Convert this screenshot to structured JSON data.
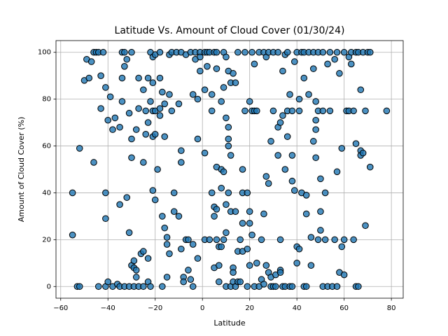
{
  "chart_data": {
    "type": "scatter",
    "title": "Latitude Vs. Amount of Cloud Cover (01/30/24)",
    "x_label": "Latitude",
    "y_label": "Amount of Cloud Cover (%)",
    "color": "#1f77b4",
    "edgecolor": "#000000",
    "grid": true,
    "xlim": [
      -62,
      85
    ],
    "ylim": [
      -5,
      105
    ],
    "xticks": [
      {
        "value": -60,
        "label": "−60"
      },
      {
        "value": -40,
        "label": "−40"
      },
      {
        "value": -20,
        "label": "−20"
      },
      0,
      20,
      40,
      60,
      80
    ],
    "yticks": [
      0,
      20,
      40,
      60,
      80,
      100
    ],
    "x": [
      -55,
      -55,
      -53,
      -52,
      -52,
      -50,
      -49,
      -48,
      -47,
      -46,
      -46,
      -45,
      -44,
      -44,
      -43,
      -43,
      -42,
      -41,
      -41,
      -41,
      -41,
      -40,
      -40,
      -39,
      -38,
      -38,
      -37,
      -36,
      -35,
      -35,
      -35,
      -34,
      -34,
      -34,
      -33,
      -33,
      -33,
      -32,
      -32,
      -31,
      -31,
      -31,
      -30,
      -30,
      -30,
      -30,
      -29,
      -29,
      -29,
      -28,
      -28,
      -28,
      -27,
      -27,
      -27,
      -26,
      -25,
      -25,
      -25,
      -25,
      -24,
      -24,
      -23,
      -23,
      -23,
      -23,
      -22,
      -22,
      -22,
      -21,
      -21,
      -21,
      -21,
      -21,
      -20,
      -20,
      -20,
      -20,
      -19,
      -18,
      -18,
      -18,
      -18,
      -17,
      -17,
      -17,
      -16,
      -16,
      -16,
      -15,
      -15,
      -15,
      -14,
      -14,
      -14,
      -13,
      -13,
      -12,
      -12,
      -11,
      -10,
      -10,
      -9,
      -9,
      -9,
      -9,
      -8,
      -8,
      -7,
      -7,
      -6,
      -6,
      -5,
      -5,
      -4,
      -4,
      -4,
      -3,
      -3,
      -2,
      -2,
      -2,
      -1,
      -1,
      -1,
      1,
      1,
      1,
      1,
      2,
      2,
      3,
      3,
      4,
      4,
      4,
      5,
      5,
      5,
      5,
      6,
      6,
      6,
      6,
      6,
      7,
      7,
      7,
      8,
      8,
      8,
      8,
      9,
      9,
      9,
      9,
      10,
      10,
      10,
      10,
      10,
      11,
      11,
      11,
      11,
      11,
      12,
      12,
      12,
      12,
      13,
      13,
      13,
      13,
      14,
      14,
      14,
      15,
      15,
      15,
      16,
      16,
      17,
      17,
      17,
      17,
      18,
      18,
      19,
      19,
      19,
      20,
      20,
      20,
      20,
      21,
      21,
      21,
      22,
      22,
      22,
      23,
      23,
      24,
      24,
      25,
      25,
      26,
      26,
      26,
      27,
      27,
      27,
      28,
      28,
      28,
      29,
      29,
      29,
      30,
      30,
      30,
      31,
      31,
      32,
      32,
      32,
      33,
      33,
      33,
      33,
      34,
      34,
      34,
      35,
      35,
      35,
      36,
      36,
      36,
      37,
      37,
      38,
      38,
      38,
      38,
      39,
      39,
      40,
      40,
      40,
      41,
      41,
      41,
      42,
      42,
      43,
      43,
      43,
      44,
      44,
      44,
      45,
      45,
      46,
      46,
      47,
      47,
      47,
      48,
      48,
      48,
      48,
      49,
      49,
      49,
      50,
      50,
      50,
      51,
      51,
      51,
      52,
      52,
      53,
      53,
      54,
      54,
      55,
      56,
      56,
      57,
      57,
      57,
      58,
      58,
      59,
      59,
      60,
      60,
      60,
      61,
      62,
      62,
      63,
      63,
      64,
      64,
      65,
      65,
      65,
      66,
      66,
      67,
      67,
      67,
      68,
      68,
      69,
      69,
      70,
      71,
      71,
      78
    ],
    "values": [
      40,
      22,
      0,
      59,
      0,
      88,
      97,
      89,
      96,
      53,
      100,
      100,
      0,
      100,
      90,
      76,
      100,
      40,
      29,
      85,
      0,
      2,
      71,
      81,
      0,
      67,
      72,
      1,
      0,
      35,
      68,
      89,
      79,
      100,
      94,
      100,
      0,
      38,
      97,
      23,
      74,
      0,
      100,
      9,
      63,
      55,
      0,
      8,
      11,
      4,
      7,
      67,
      0,
      89,
      76,
      14,
      0,
      53,
      84,
      15,
      65,
      75,
      2,
      12,
      70,
      89,
      100,
      0,
      79,
      64,
      75,
      41,
      98,
      87,
      65,
      99,
      37,
      75,
      50,
      100,
      76,
      73,
      89,
      30,
      0,
      83,
      64,
      78,
      25,
      21,
      18,
      4,
      99,
      82,
      14,
      100,
      75,
      32,
      40,
      100,
      30,
      78,
      58,
      53,
      16,
      100,
      4,
      2,
      20,
      99,
      20,
      7,
      3,
      100,
      0,
      82,
      18,
      100,
      97,
      80,
      63,
      12,
      100,
      92,
      98,
      84,
      20,
      57,
      100,
      100,
      94,
      20,
      100,
      82,
      40,
      75,
      8,
      34,
      100,
      30,
      93,
      20,
      51,
      100,
      33,
      9,
      17,
      2,
      50,
      42,
      79,
      17,
      85,
      100,
      49,
      20,
      0,
      72,
      35,
      98,
      23,
      63,
      40,
      60,
      92,
      68,
      0,
      32,
      56,
      87,
      2,
      91,
      8,
      6,
      32,
      87,
      0,
      15,
      2,
      100,
      20,
      2,
      50,
      40,
      27,
      15,
      75,
      100,
      40,
      0,
      16,
      27,
      32,
      79,
      9,
      75,
      100,
      22,
      0,
      75,
      95,
      10,
      75,
      100,
      0,
      20,
      3,
      31,
      1,
      100,
      47,
      9,
      98,
      6,
      44,
      100,
      62,
      0,
      4,
      75,
      0,
      100,
      0,
      5,
      56,
      68,
      100,
      7,
      20,
      70,
      6,
      92,
      73,
      0,
      99,
      50,
      0,
      64,
      75,
      100,
      82,
      0,
      56,
      0,
      75,
      45,
      41,
      96,
      100,
      10,
      17,
      16,
      75,
      80,
      100,
      40,
      0,
      89,
      100,
      31,
      39,
      0,
      100,
      82,
      9,
      21,
      100,
      93,
      62,
      71,
      79,
      55,
      67,
      75,
      100,
      20,
      32,
      24,
      46,
      0,
      75,
      100,
      40,
      20,
      95,
      0,
      75,
      100,
      0,
      20,
      97,
      49,
      100,
      0,
      6,
      91,
      59,
      17,
      5,
      100,
      20,
      75,
      75,
      98,
      100,
      95,
      20,
      75,
      0,
      100,
      61,
      0,
      100,
      84,
      58,
      56,
      100,
      57,
      26,
      75,
      100,
      51,
      100,
      75
    ]
  }
}
